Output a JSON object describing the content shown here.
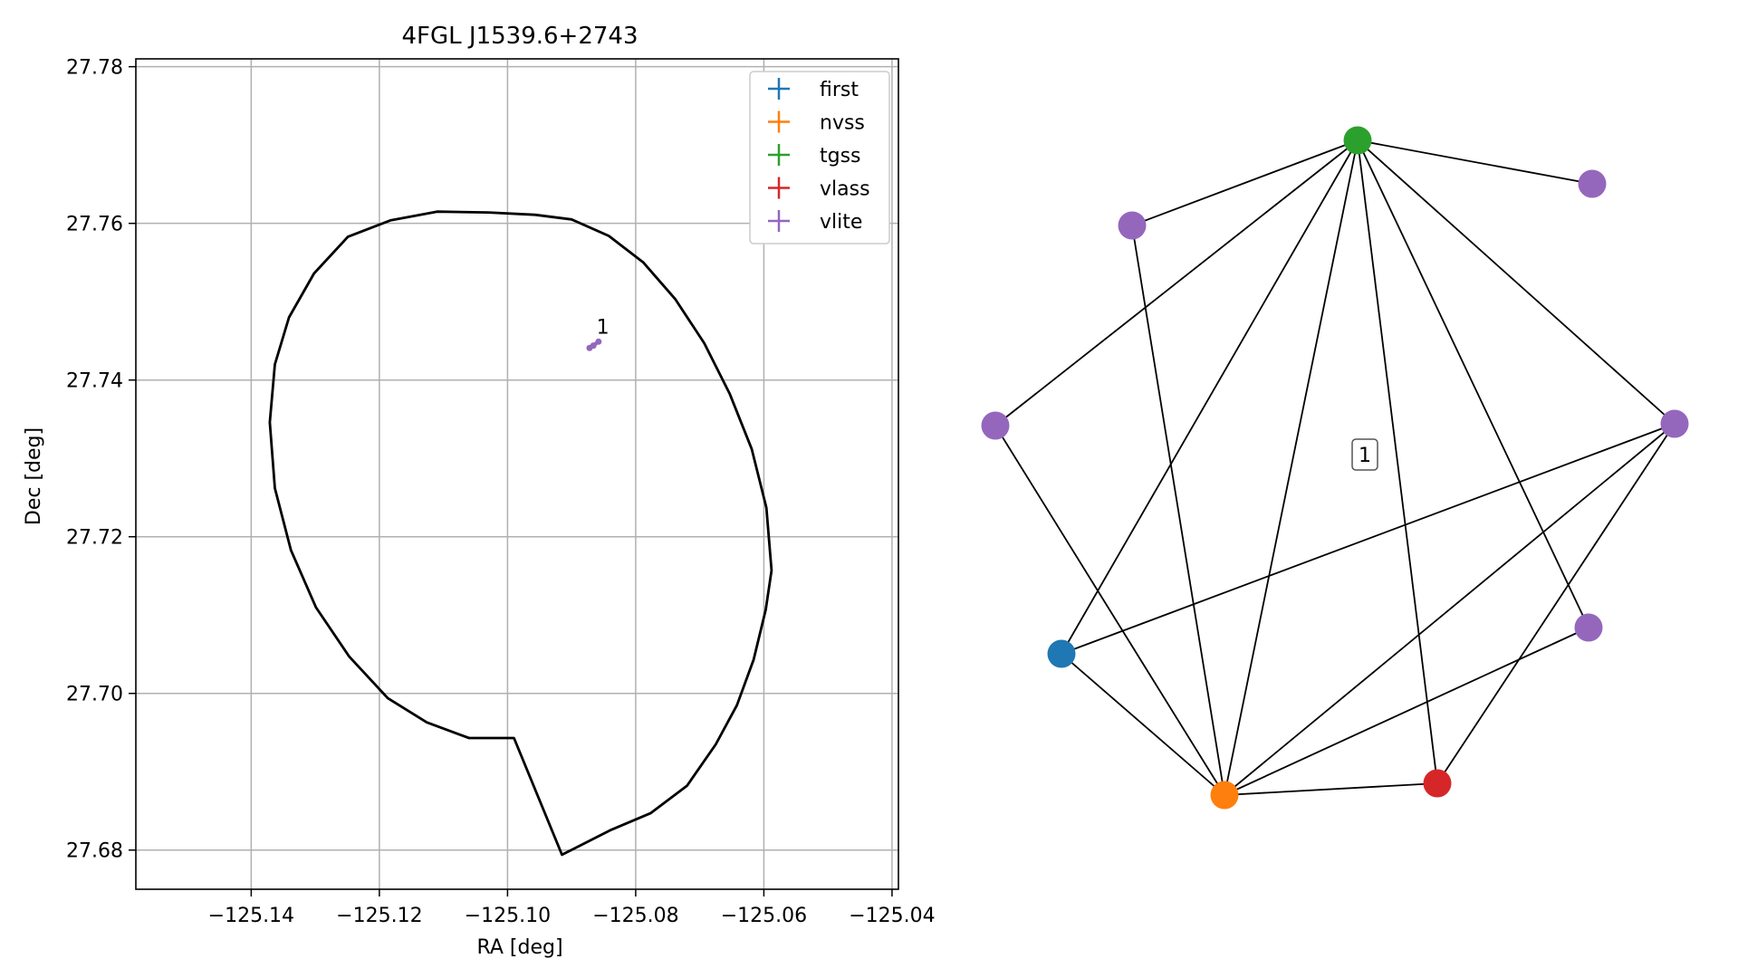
{
  "chart_data": [
    {
      "type": "scatter",
      "title": "4FGL J1539.6+2743",
      "xlabel": "RA [deg]",
      "ylabel": "Dec [deg]",
      "xlim": [
        -125.158,
        -125.039
      ],
      "ylim": [
        27.675,
        27.781
      ],
      "grid": true,
      "legend_position": "top-right",
      "x_ticks": [
        -125.14,
        -125.12,
        -125.1,
        -125.08,
        -125.06,
        -125.04
      ],
      "x_tick_labels": [
        "−125.14",
        "−125.12",
        "−125.10",
        "−125.08",
        "−125.06",
        "−125.04"
      ],
      "y_ticks": [
        27.68,
        27.7,
        27.72,
        27.74,
        27.76,
        27.78
      ],
      "y_tick_labels": [
        "27.68",
        "27.70",
        "27.72",
        "27.74",
        "27.76",
        "27.78"
      ],
      "series": [
        {
          "name": "first",
          "color": "#1f77b4",
          "points": []
        },
        {
          "name": "nvss",
          "color": "#ff7f0e",
          "points": []
        },
        {
          "name": "tgss",
          "color": "#2ca02c",
          "points": []
        },
        {
          "name": "vlass",
          "color": "#d62728",
          "points": []
        },
        {
          "name": "vlite",
          "color": "#9467bd",
          "points": [
            [
              -125.0872,
              27.7441
            ],
            [
              -125.0858,
              27.7449
            ],
            [
              -125.0866,
              27.7444
            ]
          ]
        }
      ],
      "ellipse": {
        "color": "#000000",
        "points": [
          [
            -125.0957,
            27.7611
          ],
          [
            -125.09,
            27.7605
          ],
          [
            -125.0842,
            27.7584
          ],
          [
            -125.0788,
            27.755
          ],
          [
            -125.0738,
            27.7503
          ],
          [
            -125.0693,
            27.7447
          ],
          [
            -125.0653,
            27.7382
          ],
          [
            -125.0619,
            27.7312
          ],
          [
            -125.0596,
            27.7237
          ],
          [
            -125.0588,
            27.7157
          ],
          [
            -125.0597,
            27.7107
          ],
          [
            -125.0616,
            27.7043
          ],
          [
            -125.0642,
            27.6985
          ],
          [
            -125.0675,
            27.6935
          ],
          [
            -125.072,
            27.6882
          ],
          [
            -125.0777,
            27.6847
          ],
          [
            -125.0838,
            27.6826
          ],
          [
            -125.0915,
            27.6794
          ],
          [
            -125.099,
            27.6943
          ],
          [
            -125.106,
            27.6943
          ],
          [
            -125.1126,
            27.6963
          ],
          [
            -125.1187,
            27.6994
          ],
          [
            -125.1247,
            27.7047
          ],
          [
            -125.1299,
            27.711
          ],
          [
            -125.1338,
            27.7183
          ],
          [
            -125.1363,
            27.7262
          ],
          [
            -125.1371,
            27.7346
          ],
          [
            -125.1363,
            27.742
          ],
          [
            -125.1341,
            27.748
          ],
          [
            -125.1302,
            27.7536
          ],
          [
            -125.1249,
            27.7583
          ],
          [
            -125.1182,
            27.7604
          ],
          [
            -125.111,
            27.7615
          ],
          [
            -125.103,
            27.7614
          ],
          [
            -125.0957,
            27.7611
          ]
        ]
      },
      "annotations": [
        {
          "text": "1",
          "x": -125.0864,
          "y": 27.7452
        }
      ]
    },
    {
      "type": "network",
      "group_label": "1",
      "nodes": [
        {
          "id": "tgss",
          "color": "#2ca02c"
        },
        {
          "id": "vlite_a",
          "color": "#9467bd"
        },
        {
          "id": "vlite_b",
          "color": "#9467bd"
        },
        {
          "id": "vlite_c",
          "color": "#9467bd"
        },
        {
          "id": "vlite_d",
          "color": "#9467bd"
        },
        {
          "id": "vlite_e",
          "color": "#9467bd"
        },
        {
          "id": "first",
          "color": "#1f77b4"
        },
        {
          "id": "nvss",
          "color": "#ff7f0e"
        },
        {
          "id": "vlass",
          "color": "#d62728"
        }
      ],
      "edges": [
        [
          "tgss",
          "vlite_a"
        ],
        [
          "tgss",
          "vlite_b"
        ],
        [
          "tgss",
          "vlite_c"
        ],
        [
          "tgss",
          "vlite_d"
        ],
        [
          "tgss",
          "vlite_e"
        ],
        [
          "tgss",
          "first"
        ],
        [
          "tgss",
          "nvss"
        ],
        [
          "tgss",
          "vlass"
        ],
        [
          "vlite_b",
          "nvss"
        ],
        [
          "vlite_c",
          "nvss"
        ],
        [
          "vlite_d",
          "first"
        ],
        [
          "vlite_d",
          "nvss"
        ],
        [
          "vlite_d",
          "vlass"
        ],
        [
          "vlite_e",
          "nvss"
        ],
        [
          "first",
          "nvss"
        ],
        [
          "nvss",
          "vlass"
        ]
      ]
    }
  ]
}
